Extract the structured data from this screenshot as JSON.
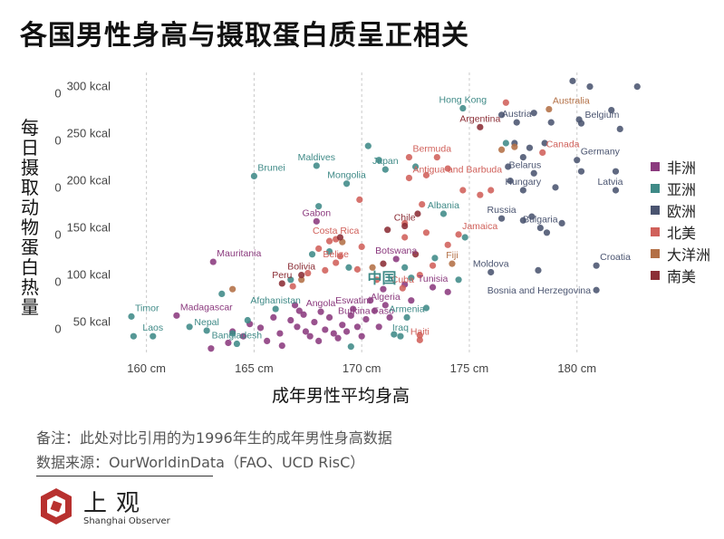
{
  "title": "各国男性身高与摄取蛋白质呈正相关",
  "chart_data": {
    "type": "scatter",
    "title": "各国男性身高与摄取蛋白质呈正相关",
    "xlabel": "成年男性平均身高",
    "ylabel": "每日摄取动物蛋白热量",
    "xlim": [
      158.5,
      183
    ],
    "ylim": [
      15,
      315
    ],
    "x_ticks": [
      160,
      165,
      170,
      175,
      180
    ],
    "x_tick_labels": [
      "160 cm",
      "165 cm",
      "170 cm",
      "175 cm",
      "180 cm"
    ],
    "y_ticks": [
      50,
      100,
      150,
      200,
      250,
      300
    ],
    "y_tick_labels": [
      "50 kcal",
      "100 kcal",
      "150 kcal",
      "200 kcal",
      "250 kcal",
      "300 kcal"
    ],
    "y_left_marks": [
      "0",
      "0",
      "0",
      "0",
      "0",
      "0"
    ],
    "grid": "vertical-dashed",
    "legend_position": "right",
    "highlight": {
      "label": "中国",
      "x": 171.7,
      "y": 97
    },
    "series": [
      {
        "name": "非洲",
        "color": "#8b3a7e",
        "points": [
          {
            "x": 163.1,
            "y": 114,
            "label": "Mauritania"
          },
          {
            "x": 168.1,
            "y": 61,
            "label": "Angola"
          },
          {
            "x": 169.6,
            "y": 64,
            "label": "Eswatini"
          },
          {
            "x": 171.1,
            "y": 68,
            "label": "Algeria"
          },
          {
            "x": 170.2,
            "y": 53,
            "label": "Burkina Faso"
          },
          {
            "x": 171.6,
            "y": 117,
            "label": "Botswana"
          },
          {
            "x": 173.3,
            "y": 87,
            "label": "Tunisia"
          },
          {
            "x": 167.9,
            "y": 157,
            "label": "Gabon"
          },
          {
            "x": 161.4,
            "y": 57,
            "label": "Madagascar"
          },
          {
            "x": 163.0,
            "y": 22
          },
          {
            "x": 163.8,
            "y": 28
          },
          {
            "x": 164.0,
            "y": 40
          },
          {
            "x": 164.5,
            "y": 35
          },
          {
            "x": 164.8,
            "y": 48
          },
          {
            "x": 165.3,
            "y": 44
          },
          {
            "x": 165.6,
            "y": 30
          },
          {
            "x": 165.9,
            "y": 55
          },
          {
            "x": 166.2,
            "y": 38
          },
          {
            "x": 166.3,
            "y": 25
          },
          {
            "x": 166.7,
            "y": 52
          },
          {
            "x": 167.0,
            "y": 45
          },
          {
            "x": 167.1,
            "y": 62
          },
          {
            "x": 167.4,
            "y": 40
          },
          {
            "x": 167.6,
            "y": 35
          },
          {
            "x": 167.8,
            "y": 50
          },
          {
            "x": 168.0,
            "y": 30
          },
          {
            "x": 168.3,
            "y": 42
          },
          {
            "x": 168.5,
            "y": 55
          },
          {
            "x": 168.7,
            "y": 38
          },
          {
            "x": 168.9,
            "y": 33
          },
          {
            "x": 169.1,
            "y": 47
          },
          {
            "x": 169.3,
            "y": 40
          },
          {
            "x": 169.5,
            "y": 57
          },
          {
            "x": 169.8,
            "y": 45
          },
          {
            "x": 170.0,
            "y": 35
          },
          {
            "x": 170.4,
            "y": 73
          },
          {
            "x": 170.6,
            "y": 62
          },
          {
            "x": 170.8,
            "y": 45
          },
          {
            "x": 171.0,
            "y": 85
          },
          {
            "x": 171.3,
            "y": 55
          },
          {
            "x": 172.0,
            "y": 90
          },
          {
            "x": 172.3,
            "y": 73
          },
          {
            "x": 174.0,
            "y": 82
          },
          {
            "x": 166.9,
            "y": 68
          },
          {
            "x": 167.3,
            "y": 58
          }
        ]
      },
      {
        "name": "亚洲",
        "color": "#3f8a87",
        "points": [
          {
            "x": 159.3,
            "y": 56,
            "label": "Timor"
          },
          {
            "x": 160.3,
            "y": 35,
            "label": "Laos"
          },
          {
            "x": 162.8,
            "y": 41,
            "label": "Nepal"
          },
          {
            "x": 164.2,
            "y": 27,
            "label": "Bangladesh"
          },
          {
            "x": 166.0,
            "y": 64,
            "label": "Afghanistan"
          },
          {
            "x": 171.8,
            "y": 35,
            "label": "Iraq"
          },
          {
            "x": 172.1,
            "y": 55,
            "label": "Armenia"
          },
          {
            "x": 165.0,
            "y": 205,
            "label": "Brunei"
          },
          {
            "x": 167.9,
            "y": 216,
            "label": "Maldives"
          },
          {
            "x": 169.3,
            "y": 197,
            "label": "Mongolia"
          },
          {
            "x": 171.1,
            "y": 212,
            "label": "Japan"
          },
          {
            "x": 173.8,
            "y": 165,
            "label": "Albania"
          },
          {
            "x": 174.7,
            "y": 277,
            "label": "Hong Kong"
          },
          {
            "x": 159.4,
            "y": 35
          },
          {
            "x": 162.0,
            "y": 45
          },
          {
            "x": 163.5,
            "y": 80
          },
          {
            "x": 164.7,
            "y": 52
          },
          {
            "x": 166.7,
            "y": 95
          },
          {
            "x": 167.7,
            "y": 122
          },
          {
            "x": 168.5,
            "y": 125
          },
          {
            "x": 169.4,
            "y": 108
          },
          {
            "x": 169.5,
            "y": 24
          },
          {
            "x": 170.3,
            "y": 237
          },
          {
            "x": 170.8,
            "y": 222
          },
          {
            "x": 171.5,
            "y": 37
          },
          {
            "x": 172.0,
            "y": 108
          },
          {
            "x": 172.3,
            "y": 97
          },
          {
            "x": 172.5,
            "y": 215
          },
          {
            "x": 173.0,
            "y": 65
          },
          {
            "x": 173.4,
            "y": 118
          },
          {
            "x": 174.5,
            "y": 95
          },
          {
            "x": 174.8,
            "y": 140
          },
          {
            "x": 176.7,
            "y": 240
          },
          {
            "x": 168.0,
            "y": 173
          },
          {
            "x": 164.0,
            "y": 38
          }
        ]
      },
      {
        "name": "欧洲",
        "color": "#4a5470",
        "points": [
          {
            "x": 177.2,
            "y": 262,
            "label": "Austria"
          },
          {
            "x": 180.2,
            "y": 261,
            "label": "Belgium"
          },
          {
            "x": 180.0,
            "y": 222,
            "label": "Germany"
          },
          {
            "x": 178.0,
            "y": 208,
            "label": "Belarus"
          },
          {
            "x": 181.8,
            "y": 190,
            "label": "Latvia"
          },
          {
            "x": 177.5,
            "y": 190,
            "label": "Hungary"
          },
          {
            "x": 176.5,
            "y": 160,
            "label": "Russia"
          },
          {
            "x": 178.3,
            "y": 150,
            "label": "Bulgaria"
          },
          {
            "x": 180.9,
            "y": 110,
            "label": "Croatia"
          },
          {
            "x": 176.0,
            "y": 103,
            "label": "Moldova"
          },
          {
            "x": 180.9,
            "y": 84,
            "label": "Bosnia and Herzegovina"
          },
          {
            "x": 179.8,
            "y": 306
          },
          {
            "x": 180.6,
            "y": 300
          },
          {
            "x": 182.8,
            "y": 300
          },
          {
            "x": 181.6,
            "y": 275
          },
          {
            "x": 182.0,
            "y": 255
          },
          {
            "x": 178.8,
            "y": 262
          },
          {
            "x": 180.1,
            "y": 265
          },
          {
            "x": 178.5,
            "y": 240
          },
          {
            "x": 177.8,
            "y": 235
          },
          {
            "x": 177.1,
            "y": 240
          },
          {
            "x": 177.5,
            "y": 225
          },
          {
            "x": 176.8,
            "y": 215
          },
          {
            "x": 180.2,
            "y": 210
          },
          {
            "x": 181.8,
            "y": 210
          },
          {
            "x": 176.9,
            "y": 200
          },
          {
            "x": 179.0,
            "y": 193
          },
          {
            "x": 177.9,
            "y": 162
          },
          {
            "x": 179.3,
            "y": 155
          },
          {
            "x": 178.6,
            "y": 145
          },
          {
            "x": 177.5,
            "y": 158
          },
          {
            "x": 178.2,
            "y": 105
          },
          {
            "x": 176.5,
            "y": 270
          },
          {
            "x": 178.0,
            "y": 272
          }
        ]
      },
      {
        "name": "北美",
        "color": "#d0605a",
        "points": [
          {
            "x": 172.2,
            "y": 225,
            "label": "Bermuda"
          },
          {
            "x": 172.2,
            "y": 203,
            "label": "Antigua and Barbuda"
          },
          {
            "x": 168.8,
            "y": 138,
            "label": "Costa Rica"
          },
          {
            "x": 168.8,
            "y": 113,
            "label": "Belize"
          },
          {
            "x": 171.9,
            "y": 86,
            "label": "Cuba"
          },
          {
            "x": 174.5,
            "y": 143,
            "label": "Jamaica"
          },
          {
            "x": 172.7,
            "y": 31,
            "label": "Haiti"
          },
          {
            "x": 178.4,
            "y": 230,
            "label": "Canada"
          },
          {
            "x": 176.7,
            "y": 283
          },
          {
            "x": 169.9,
            "y": 180
          },
          {
            "x": 173.0,
            "y": 206
          },
          {
            "x": 173.5,
            "y": 225
          },
          {
            "x": 174.0,
            "y": 213
          },
          {
            "x": 175.5,
            "y": 185
          },
          {
            "x": 176.0,
            "y": 190
          },
          {
            "x": 174.7,
            "y": 190
          },
          {
            "x": 172.8,
            "y": 175
          },
          {
            "x": 172.0,
            "y": 155
          },
          {
            "x": 170.0,
            "y": 130
          },
          {
            "x": 169.0,
            "y": 120
          },
          {
            "x": 168.0,
            "y": 128
          },
          {
            "x": 167.5,
            "y": 102
          },
          {
            "x": 168.3,
            "y": 105
          },
          {
            "x": 169.8,
            "y": 106
          },
          {
            "x": 170.7,
            "y": 95
          },
          {
            "x": 172.7,
            "y": 100
          },
          {
            "x": 173.3,
            "y": 110
          },
          {
            "x": 174.0,
            "y": 132
          },
          {
            "x": 173.0,
            "y": 145
          },
          {
            "x": 172.0,
            "y": 140
          },
          {
            "x": 168.5,
            "y": 136
          },
          {
            "x": 166.8,
            "y": 88
          },
          {
            "x": 172.7,
            "y": 36
          }
        ]
      },
      {
        "name": "大洋洲",
        "color": "#b37046",
        "points": [
          {
            "x": 178.7,
            "y": 276,
            "label": "Australia"
          },
          {
            "x": 174.2,
            "y": 112,
            "label": "Fiji"
          },
          {
            "x": 164.0,
            "y": 85
          },
          {
            "x": 167.2,
            "y": 95
          },
          {
            "x": 169.1,
            "y": 135
          },
          {
            "x": 170.5,
            "y": 108
          },
          {
            "x": 177.1,
            "y": 236
          },
          {
            "x": 176.5,
            "y": 233
          }
        ]
      },
      {
        "name": "南美",
        "color": "#8b2e36",
        "points": [
          {
            "x": 175.5,
            "y": 257,
            "label": "Argentina"
          },
          {
            "x": 172.0,
            "y": 152,
            "label": "Chile"
          },
          {
            "x": 166.3,
            "y": 91,
            "label": "Peru"
          },
          {
            "x": 167.2,
            "y": 100,
            "label": "Bolivia"
          },
          {
            "x": 171.0,
            "y": 112
          },
          {
            "x": 172.5,
            "y": 122
          },
          {
            "x": 172.6,
            "y": 165
          },
          {
            "x": 171.2,
            "y": 148
          },
          {
            "x": 169.0,
            "y": 140
          }
        ]
      }
    ]
  },
  "note": "备注：此处对比引用的为1996年生的成年男性身高数据",
  "source": "数据来源：OurWorldinData（FAO、UCD RisC）",
  "logo": {
    "name": "上观",
    "sub": "Shanghai Observer",
    "color": "#b8312f"
  }
}
